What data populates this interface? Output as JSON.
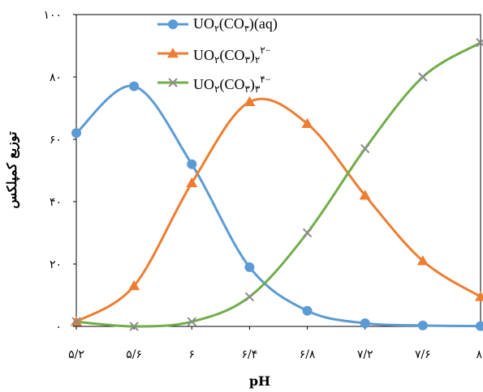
{
  "chart_data": {
    "type": "line",
    "title": "",
    "xlabel": "pH",
    "ylabel": "توزیع کمپلکس",
    "x": [
      5.2,
      5.6,
      6.0,
      6.4,
      6.8,
      7.2,
      7.6,
      8.0
    ],
    "x_tick_labels": [
      "۵/۲",
      "۵/۶",
      "۶",
      "۶/۴",
      "۶/۸",
      "۷/۲",
      "۷/۶",
      "۸"
    ],
    "xlim": [
      5.2,
      8.0
    ],
    "ylim": [
      0,
      100
    ],
    "y_ticks": [
      0,
      20,
      40,
      60,
      80,
      100
    ],
    "y_tick_labels": [
      "۰",
      "۲۰",
      "۴۰",
      "۶۰",
      "۸۰",
      "۱۰۰"
    ],
    "grid": false,
    "legend_position": "top-center",
    "series": [
      {
        "name": "UO₂(CO₃)(aq)",
        "legend_main": "UO",
        "legend_parts": [
          {
            "t": "UO",
            "sub": false
          },
          {
            "t": "۲",
            "sub": true
          },
          {
            "t": "(CO",
            "sub": false
          },
          {
            "t": "۳",
            "sub": true
          },
          {
            "t": ")(aq)",
            "sub": false
          }
        ],
        "color": "#5B9BD5",
        "marker": "circle",
        "x": [
          5.2,
          5.6,
          6.0,
          6.4,
          6.8,
          7.2,
          7.6,
          8.0
        ],
        "values": [
          62,
          77,
          52,
          19,
          5,
          1,
          0.3,
          0.1
        ]
      },
      {
        "name": "UO₂(CO₃)₂²⁻",
        "legend_parts": [
          {
            "t": "UO",
            "sub": false
          },
          {
            "t": "۲",
            "sub": true
          },
          {
            "t": "(CO",
            "sub": false
          },
          {
            "t": "۳",
            "sub": true
          },
          {
            "t": ")",
            "sub": false
          },
          {
            "t": "۲",
            "sub": true
          },
          {
            "t": "۲−",
            "sup": true
          }
        ],
        "color": "#ED7D31",
        "marker": "triangle",
        "x": [
          5.2,
          5.6,
          6.0,
          6.4,
          6.8,
          7.2,
          7.6,
          8.0
        ],
        "values": [
          1.5,
          13,
          46,
          72,
          65,
          42,
          21,
          9.5
        ]
      },
      {
        "name": "UO₂(CO₃)₃⁴⁻",
        "legend_parts": [
          {
            "t": "UO",
            "sub": false
          },
          {
            "t": "۲",
            "sub": true
          },
          {
            "t": "(CO",
            "sub": false
          },
          {
            "t": "۳",
            "sub": true
          },
          {
            "t": ")",
            "sub": false
          },
          {
            "t": "۳",
            "sub": true
          },
          {
            "t": "۴−",
            "sup": true
          }
        ],
        "color": "#70AD47",
        "marker_color": "#8C8C8C",
        "marker": "x",
        "x": [
          5.2,
          5.6,
          6.0,
          6.4,
          6.8,
          7.2,
          7.6,
          8.0
        ],
        "values": [
          1.5,
          0,
          1.5,
          9.5,
          30,
          57,
          80,
          91
        ]
      }
    ]
  }
}
